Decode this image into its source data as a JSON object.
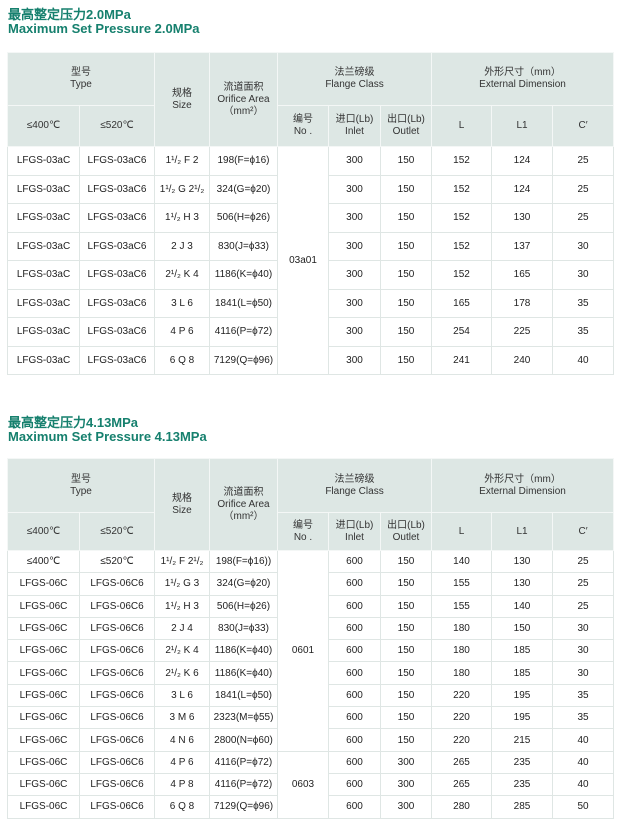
{
  "header_labels": {
    "type_cn": "型号",
    "type_en": "Type",
    "size_cn": "规格",
    "size_en": "Size",
    "orifice_cn": "流道面积",
    "orifice_en": "Orifice Area",
    "orifice_unit": "（mm²）",
    "flange_cn": "法兰磅级",
    "flange_en": "Flange  Class",
    "dim_cn": "外形尺寸（mm）",
    "dim_en": "External Dimension",
    "t400": "≤400℃",
    "t520": "≤520℃",
    "no_cn": "编号",
    "no_en": "No .",
    "inlet_cn": "进口(Lb)",
    "inlet_en": "Inlet",
    "outlet_cn": "出口(Lb)",
    "outlet_en": "Outlet",
    "L": "L",
    "L1": "L1",
    "C": "C′"
  },
  "sections": [
    {
      "title_cn": "最高整定压力2.0MPa",
      "title_en": "Maximum Set Pressure 2.0MPa",
      "groups": [
        {
          "no": "03a01",
          "rows": 8
        }
      ],
      "rows": [
        [
          "LFGS-03aC",
          "LFGS-03aC6",
          "1¹/₂ F 2",
          "198(F=ϕ16)",
          "300",
          "150",
          "152",
          "124",
          "25"
        ],
        [
          "LFGS-03aC",
          "LFGS-03aC6",
          "1¹/₂ G 2¹/₂",
          "324(G=ϕ20)",
          "300",
          "150",
          "152",
          "124",
          "25"
        ],
        [
          "LFGS-03aC",
          "LFGS-03aC6",
          "1¹/₂ H 3",
          "506(H=ϕ26)",
          "300",
          "150",
          "152",
          "130",
          "25"
        ],
        [
          "LFGS-03aC",
          "LFGS-03aC6",
          "2 J 3",
          "830(J=ϕ33)",
          "300",
          "150",
          "152",
          "137",
          "30"
        ],
        [
          "LFGS-03aC",
          "LFGS-03aC6",
          "2¹/₂ K 4",
          "1186(K=ϕ40)",
          "300",
          "150",
          "152",
          "165",
          "30"
        ],
        [
          "LFGS-03aC",
          "LFGS-03aC6",
          "3 L 6",
          "1841(L=ϕ50)",
          "300",
          "150",
          "165",
          "178",
          "35"
        ],
        [
          "LFGS-03aC",
          "LFGS-03aC6",
          "4 P 6",
          "4116(P=ϕ72)",
          "300",
          "150",
          "254",
          "225",
          "35"
        ],
        [
          "LFGS-03aC",
          "LFGS-03aC6",
          "6 Q 8",
          "7129(Q=ϕ96)",
          "300",
          "150",
          "241",
          "240",
          "40"
        ]
      ]
    },
    {
      "title_cn": "最高整定压力4.13MPa",
      "title_en": "Maximum Set Pressure 4.13MPa",
      "groups": [
        {
          "no": "0601",
          "rows": 9
        },
        {
          "no": "0603",
          "rows": 3
        }
      ],
      "rows": [
        [
          "≤400℃",
          "≤520℃",
          "1¹/₂ F 2¹/₂",
          "198(F=ϕ16))",
          "600",
          "150",
          "140",
          "130",
          "25"
        ],
        [
          "LFGS-06C",
          "LFGS-06C6",
          "1¹/₂ G 3",
          "324(G=ϕ20)",
          "600",
          "150",
          "155",
          "130",
          "25"
        ],
        [
          "LFGS-06C",
          "LFGS-06C6",
          "1¹/₂ H 3",
          "506(H=ϕ26)",
          "600",
          "150",
          "155",
          "140",
          "25"
        ],
        [
          "LFGS-06C",
          "LFGS-06C6",
          "2 J 4",
          "830(J=ϕ33)",
          "600",
          "150",
          "180",
          "150",
          "30"
        ],
        [
          "LFGS-06C",
          "LFGS-06C6",
          "2¹/₂ K 4",
          "1186(K=ϕ40)",
          "600",
          "150",
          "180",
          "185",
          "30"
        ],
        [
          "LFGS-06C",
          "LFGS-06C6",
          "2¹/₂ K 6",
          "1186(K=ϕ40)",
          "600",
          "150",
          "180",
          "185",
          "30"
        ],
        [
          "LFGS-06C",
          "LFGS-06C6",
          "3 L 6",
          "1841(L=ϕ50)",
          "600",
          "150",
          "220",
          "195",
          "35"
        ],
        [
          "LFGS-06C",
          "LFGS-06C6",
          "3 M 6",
          "2323(M=ϕ55)",
          "600",
          "150",
          "220",
          "195",
          "35"
        ],
        [
          "LFGS-06C",
          "LFGS-06C6",
          "4 N 6",
          "2800(N=ϕ60)",
          "600",
          "150",
          "220",
          "215",
          "40"
        ],
        [
          "LFGS-06C",
          "LFGS-06C6",
          "4 P 6",
          "4116(P=ϕ72)",
          "600",
          "300",
          "265",
          "235",
          "40"
        ],
        [
          "LFGS-06C",
          "LFGS-06C6",
          "4 P 8",
          "4116(P=ϕ72)",
          "600",
          "300",
          "265",
          "235",
          "40"
        ],
        [
          "LFGS-06C",
          "LFGS-06C6",
          "6 Q 8",
          "7129(Q=ϕ96)",
          "600",
          "300",
          "280",
          "285",
          "50"
        ]
      ]
    }
  ],
  "colors": {
    "title": "#16806e",
    "header_bg": "#dde7e4"
  }
}
